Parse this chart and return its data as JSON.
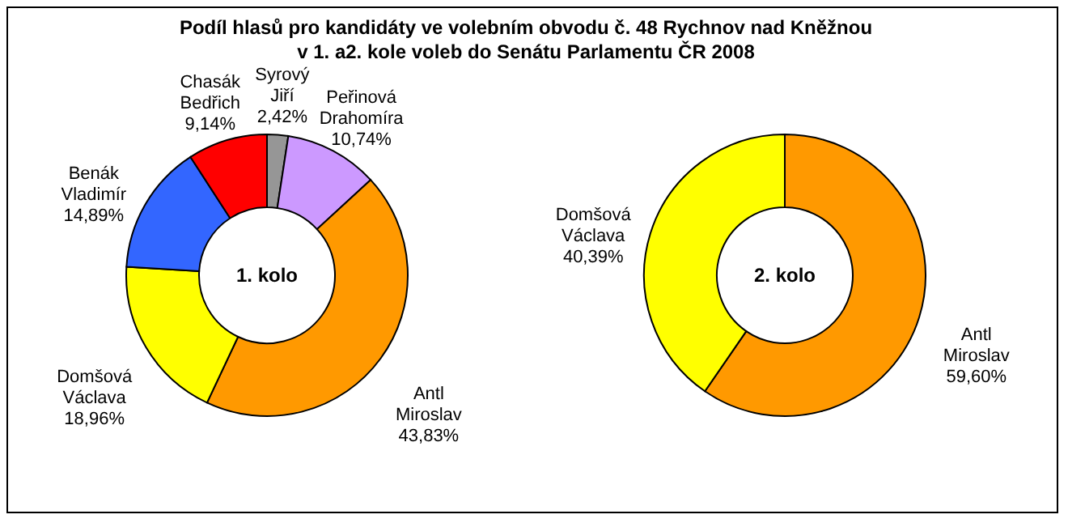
{
  "chart_data": [
    {
      "type": "donut",
      "title": "Podíl hlasů pro kandidáty ve volebním obvodu č. 48 Rychnov nad Kněžnou\nv 1. a2. kole voleb do Senátu Parlamentu ČR 2008",
      "categories": [
        "Syrový Jiří",
        "Peřinová Drahomíra",
        "Antl Miroslav",
        "Domšová Václava",
        "Benák Vladimír",
        "Chasák Bedřich"
      ],
      "values": [
        2.42,
        10.74,
        43.83,
        18.96,
        14.89,
        9.14
      ],
      "colors": [
        "#969696",
        "#cc99ff",
        "#ff9900",
        "#ffff00",
        "#3366ff",
        "#ff0000"
      ],
      "value_labels": [
        "2,42%",
        "10,74%",
        "43,83%",
        "18,96%",
        "14,89%",
        "9,14%"
      ],
      "annotations": [
        "1. kolo"
      ]
    },
    {
      "type": "donut",
      "categories": [
        "Antl Miroslav",
        "Domšová Václava"
      ],
      "values": [
        59.6,
        40.39
      ],
      "colors": [
        "#ff9900",
        "#ffff00"
      ],
      "value_labels": [
        "59,60%",
        "40,39%"
      ],
      "annotations": [
        "2. kolo"
      ]
    }
  ]
}
